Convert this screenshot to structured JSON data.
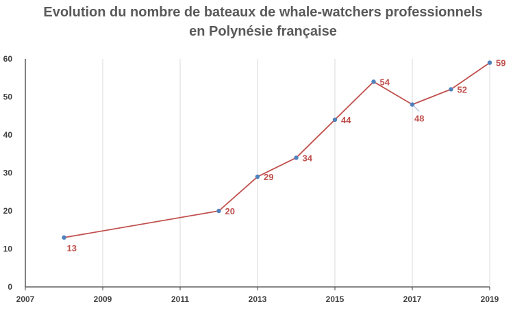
{
  "chart_data": {
    "type": "line",
    "title_line1": "Evolution du nombre de bateaux de whale-watchers professionnels",
    "title_line2": "en Polynésie française",
    "xlabel": "",
    "ylabel": "",
    "xlim": [
      2007,
      2019
    ],
    "ylim": [
      0,
      60
    ],
    "x_ticks": [
      "2007",
      "2009",
      "2011",
      "2013",
      "2015",
      "2017",
      "2019"
    ],
    "y_ticks": [
      "0",
      "10",
      "20",
      "30",
      "40",
      "50",
      "60"
    ],
    "grid": "vertical",
    "series": [
      {
        "points": [
          {
            "x": 2008,
            "y": 13
          },
          {
            "x": 2012,
            "y": 20
          },
          {
            "x": 2013,
            "y": 29
          },
          {
            "x": 2014,
            "y": 34
          },
          {
            "x": 2015,
            "y": 44
          },
          {
            "x": 2016,
            "y": 54
          },
          {
            "x": 2017,
            "y": 48
          },
          {
            "x": 2018,
            "y": 52
          },
          {
            "x": 2019,
            "y": 59
          }
        ]
      }
    ],
    "colors": {
      "line": "#c0504d",
      "marker": "#4f81bd",
      "label": "#c0504d",
      "grid": "#d9d9d9",
      "axis": "#404040",
      "title": "#595959"
    }
  }
}
